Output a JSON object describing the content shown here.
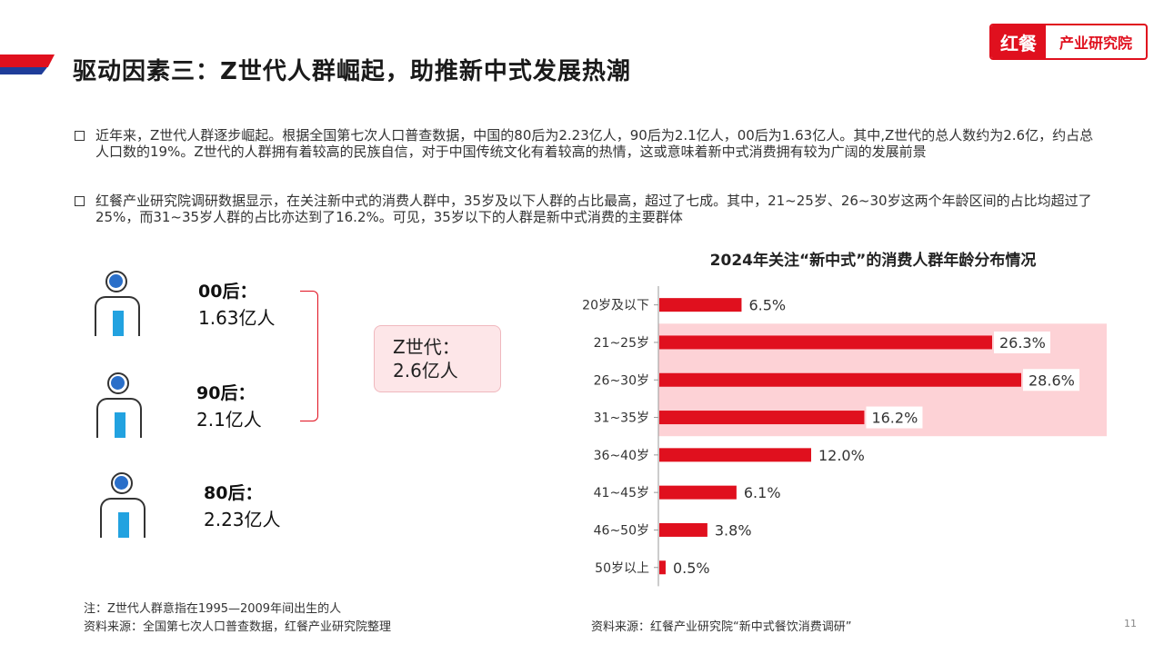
{
  "header": {
    "title": "驱动因素三：Z世代人群崛起，助推新中式发展热潮",
    "logo_mark": "红餐",
    "logo_text": "产业研究院"
  },
  "bullets": [
    "近年来，Z世代人群逐步崛起。根据全国第七次人口普查数据，中国的80后为2.23亿人，90后为2.1亿人，00后为1.63亿人。其中,Z世代的总人数约为2.6亿，约占总人口数的19%。Z世代的人群拥有着较高的民族自信，对于中国传统文化有着较高的热情，这或意味着新中式消费拥有较为广阔的发展前景",
    "红餐产业研究院调研数据显示，在关注新中式的消费人群中，35岁及以下人群的占比最高，超过了七成。其中，21~25岁、26~30岁这两个年龄区间的占比均超过了25%，而31~35岁人群的占比亦达到了16.2%。可见，35岁以下的人群是新中式消费的主要群体"
  ],
  "generations": [
    {
      "label": "00后：",
      "value": "1.63亿人"
    },
    {
      "label": "90后：",
      "value": "2.1亿人"
    },
    {
      "label": "80后：",
      "value": "2.23亿人"
    }
  ],
  "zgen": {
    "label": "Z世代：",
    "value": "2.6亿人"
  },
  "chart_data": {
    "type": "bar",
    "orientation": "horizontal",
    "title": "2024年关注“新中式”的消费人群年龄分布情况",
    "categories": [
      "20岁及以下",
      "21~25岁",
      "26~30岁",
      "31~35岁",
      "36~40岁",
      "41~45岁",
      "46~50岁",
      "50岁以上"
    ],
    "values": [
      6.5,
      26.3,
      28.6,
      16.2,
      12.0,
      6.1,
      3.8,
      0.5
    ],
    "value_labels": [
      "6.5%",
      "26.3%",
      "28.6%",
      "16.2%",
      "12.0%",
      "6.1%",
      "3.8%",
      "0.5%"
    ],
    "highlight_categories": [
      "21~25岁",
      "26~30岁",
      "31~35岁"
    ],
    "xlim": [
      0,
      40
    ],
    "grid": false,
    "legend": "none",
    "colors": {
      "bar": "#e0101e",
      "highlight": "#fdd2d6",
      "bracket": "#e0101e"
    }
  },
  "footnotes": {
    "note": "注：Z世代人群意指在1995—2009年间出生的人",
    "source_left": "资料来源：全国第七次人口普查数据，红餐产业研究院整理",
    "source_right": "资料来源：红餐产业研究院“新中式餐饮消费调研”"
  },
  "page_number": "11"
}
